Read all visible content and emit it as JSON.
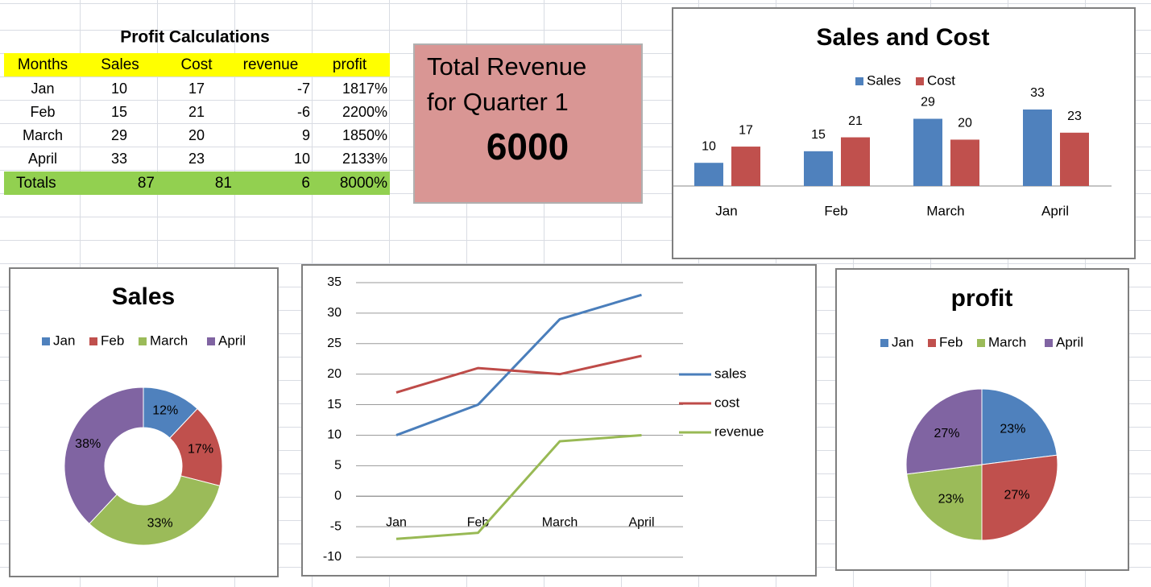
{
  "table": {
    "title": "Profit Calculations",
    "header": [
      "Months",
      "Sales",
      "Cost",
      "revenue",
      "profit"
    ],
    "rows": [
      [
        "Jan",
        10,
        17,
        -7,
        "1817%"
      ],
      [
        "Feb",
        15,
        21,
        -6,
        "2200%"
      ],
      [
        "March",
        29,
        20,
        9,
        "1850%"
      ],
      [
        "April",
        33,
        23,
        10,
        "2133%"
      ]
    ],
    "totals": [
      "Totals",
      87,
      81,
      6,
      "8000%"
    ]
  },
  "text_box": {
    "lines": [
      "Total Revenue",
      "for Quarter 1"
    ],
    "value": "6000"
  },
  "chart_data": [
    {
      "type": "bar",
      "title": "Sales and Cost",
      "categories": [
        "Jan",
        "Feb",
        "March",
        "April"
      ],
      "series": [
        {
          "name": "Sales",
          "color": "#4f81bd",
          "values": [
            10,
            15,
            29,
            33
          ]
        },
        {
          "name": "Cost",
          "color": "#c0504d",
          "values": [
            17,
            21,
            20,
            23
          ]
        }
      ],
      "legend": "top"
    },
    {
      "type": "doughnut",
      "title": "Sales",
      "categories": [
        "Jan",
        "Feb",
        "March",
        "April"
      ],
      "values": [
        12,
        17,
        33,
        38
      ],
      "value_labels": [
        "12%",
        "17%",
        "33%",
        "38%"
      ],
      "colors": [
        "#4f81bd",
        "#c0504d",
        "#9bbb59",
        "#8064a2"
      ],
      "legend": "top"
    },
    {
      "type": "line",
      "categories": [
        "Jan",
        "Feb",
        "March",
        "April"
      ],
      "series": [
        {
          "name": "sales",
          "color": "#4a7ebb",
          "values": [
            10,
            15,
            29,
            33
          ]
        },
        {
          "name": "cost",
          "color": "#be4b48",
          "values": [
            17,
            21,
            20,
            23
          ]
        },
        {
          "name": "revenue",
          "color": "#98b954",
          "values": [
            -7,
            -6,
            9,
            10
          ]
        }
      ],
      "ylim": [
        -10,
        35
      ],
      "yticks": [
        -10,
        -5,
        0,
        5,
        10,
        15,
        20,
        25,
        30,
        35
      ],
      "grid": true,
      "legend": "right"
    },
    {
      "type": "pie",
      "title": "profit",
      "categories": [
        "Jan",
        "Feb",
        "March",
        "April"
      ],
      "values": [
        23,
        27,
        23,
        27
      ],
      "value_labels": [
        "23%",
        "27%",
        "23%",
        "27%"
      ],
      "colors": [
        "#4f81bd",
        "#c0504d",
        "#9bbb59",
        "#8064a2"
      ],
      "legend": "top"
    }
  ]
}
